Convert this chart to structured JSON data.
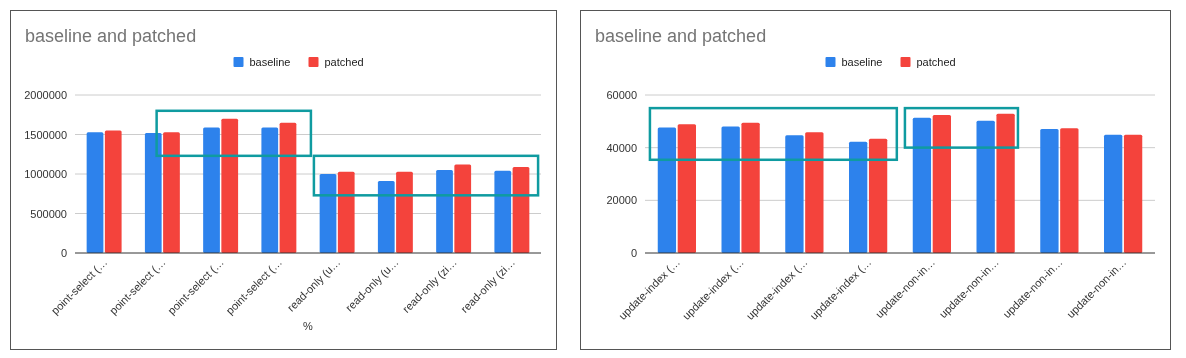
{
  "chart_data": [
    {
      "type": "bar",
      "title": "baseline and patched",
      "xlabel": "%",
      "categories": [
        "point-select (…",
        "point-select (…",
        "point-select (…",
        "point-select (…",
        "read-only (u…",
        "read-only (u…",
        "read-only (zi…",
        "read-only (zi…"
      ],
      "series": [
        {
          "name": "baseline",
          "color": "#2d82ec",
          "values": [
            1530000,
            1520000,
            1590000,
            1590000,
            1000000,
            910000,
            1050000,
            1040000
          ]
        },
        {
          "name": "patched",
          "color": "#f4433c",
          "values": [
            1550000,
            1530000,
            1700000,
            1650000,
            1030000,
            1030000,
            1120000,
            1090000
          ]
        }
      ],
      "ylim": [
        0,
        2000000
      ],
      "yticks": [
        0,
        500000,
        1000000,
        1500000,
        2000000
      ],
      "grid": "y",
      "legend": "top"
    },
    {
      "type": "bar",
      "title": "baseline and patched",
      "categories": [
        "update-index (…",
        "update-index (…",
        "update-index (…",
        "update-index (…",
        "update-non-in…",
        "update-non-in…",
        "update-non-in…",
        "update-non-in…"
      ],
      "series": [
        {
          "name": "baseline",
          "color": "#2d82ec",
          "values": [
            47700,
            48000,
            44700,
            42200,
            51400,
            50200,
            47100,
            44900
          ]
        },
        {
          "name": "patched",
          "color": "#f4433c",
          "values": [
            48900,
            49500,
            45900,
            43400,
            52400,
            52900,
            47400,
            44900
          ]
        }
      ],
      "ylim": [
        0,
        60000
      ],
      "yticks": [
        0,
        20000,
        40000,
        60000
      ],
      "grid": "y",
      "legend": "top"
    }
  ]
}
